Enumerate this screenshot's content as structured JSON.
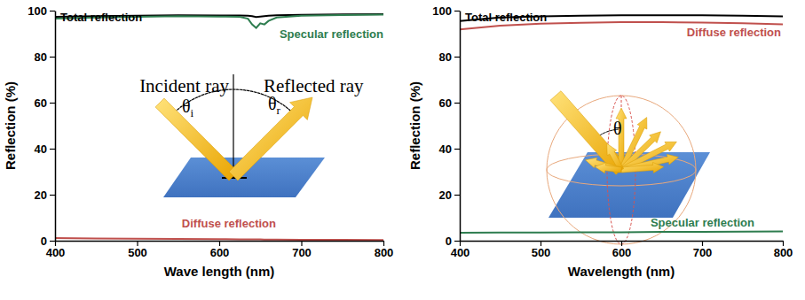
{
  "chart_data": [
    {
      "type": "line",
      "xlabel": "Wave length (nm)",
      "ylabel": "Reflection (%)",
      "x": [
        400,
        450,
        500,
        550,
        600,
        625,
        635,
        640,
        645,
        650,
        655,
        660,
        670,
        700,
        750,
        800
      ],
      "series": [
        {
          "name": "Total reflection",
          "color": "#000000",
          "values": [
            97.3,
            97.6,
            97.8,
            98.0,
            97.9,
            97.9,
            97.8,
            97.6,
            97.2,
            97.4,
            97.6,
            97.8,
            98.0,
            98.2,
            98.4,
            98.5
          ]
        },
        {
          "name": "Specular reflection",
          "color": "#2e7d4f",
          "values": [
            96.5,
            97.0,
            97.3,
            97.6,
            97.4,
            97.3,
            96.5,
            94.0,
            92.5,
            94.5,
            94.0,
            95.5,
            97.0,
            97.8,
            98.1,
            98.3
          ]
        },
        {
          "name": "Diffuse reflection",
          "color": "#c0504d",
          "values": [
            1.2,
            1.0,
            0.9,
            0.8,
            0.7,
            0.6,
            0.6,
            0.6,
            0.6,
            0.6,
            0.5,
            0.5,
            0.5,
            0.4,
            0.4,
            0.3
          ]
        }
      ],
      "xlim": [
        400,
        800
      ],
      "ylim": [
        0,
        100
      ],
      "xticks": [
        400,
        500,
        600,
        700,
        800
      ],
      "yticks": [
        0,
        20,
        40,
        60,
        80,
        100
      ],
      "annotations": [
        "Incident ray",
        "Reflected ray",
        "θi",
        "θr"
      ]
    },
    {
      "type": "line",
      "xlabel": "Wavelength (nm)",
      "ylabel": "Reflection (%)",
      "x": [
        400,
        450,
        500,
        550,
        600,
        650,
        700,
        750,
        800
      ],
      "series": [
        {
          "name": "Total reflection",
          "color": "#000000",
          "values": [
            95.5,
            97.0,
            97.5,
            97.8,
            98.0,
            98.0,
            98.0,
            97.8,
            97.5
          ]
        },
        {
          "name": "Diffuse reflection",
          "color": "#c0504d",
          "values": [
            91.8,
            93.5,
            94.3,
            94.7,
            95.0,
            95.0,
            94.8,
            94.5,
            94.0
          ]
        },
        {
          "name": "Specular reflection",
          "color": "#2e7d4f",
          "values": [
            3.5,
            3.6,
            3.6,
            3.7,
            3.7,
            3.8,
            3.8,
            3.9,
            4.0
          ]
        }
      ],
      "xlim": [
        400,
        800
      ],
      "ylim": [
        0,
        100
      ],
      "xticks": [
        400,
        500,
        600,
        700,
        800
      ],
      "yticks": [
        0,
        20,
        40,
        60,
        80,
        100
      ],
      "annotations": [
        "θ"
      ]
    }
  ]
}
